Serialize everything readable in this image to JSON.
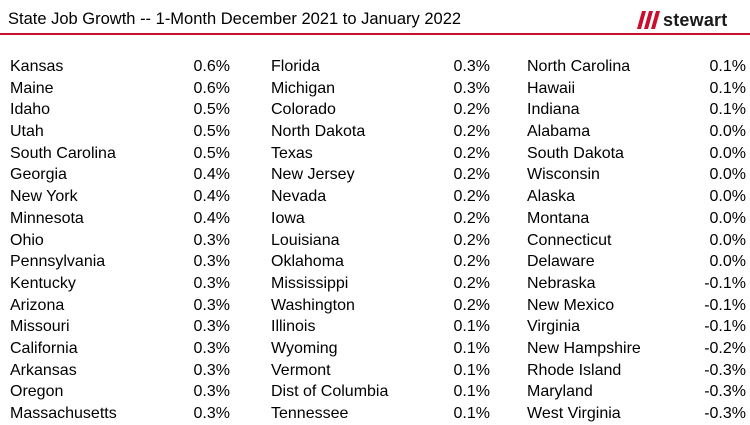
{
  "header": {
    "title": "State Job Growth -- 1-Month December 2021 to January 2022",
    "logo_text": "stewart",
    "accent_color": "#c8102e"
  },
  "chart_data": {
    "type": "table",
    "title": "State Job Growth -- 1-Month December 2021 to January 2022",
    "columns": [
      {
        "rows": [
          {
            "state": "Kansas",
            "value": "0.6%"
          },
          {
            "state": "Maine",
            "value": "0.6%"
          },
          {
            "state": "Idaho",
            "value": "0.5%"
          },
          {
            "state": "Utah",
            "value": "0.5%"
          },
          {
            "state": "South Carolina",
            "value": "0.5%"
          },
          {
            "state": "Georgia",
            "value": "0.4%"
          },
          {
            "state": "New York",
            "value": "0.4%"
          },
          {
            "state": "Minnesota",
            "value": "0.4%"
          },
          {
            "state": "Ohio",
            "value": "0.3%"
          },
          {
            "state": "Pennsylvania",
            "value": "0.3%"
          },
          {
            "state": "Kentucky",
            "value": "0.3%"
          },
          {
            "state": "Arizona",
            "value": "0.3%"
          },
          {
            "state": "Missouri",
            "value": "0.3%"
          },
          {
            "state": "California",
            "value": "0.3%"
          },
          {
            "state": "Arkansas",
            "value": "0.3%"
          },
          {
            "state": "Oregon",
            "value": "0.3%"
          },
          {
            "state": "Massachusetts",
            "value": "0.3%"
          }
        ]
      },
      {
        "rows": [
          {
            "state": "Florida",
            "value": "0.3%"
          },
          {
            "state": "Michigan",
            "value": "0.3%"
          },
          {
            "state": "Colorado",
            "value": "0.2%"
          },
          {
            "state": "North Dakota",
            "value": "0.2%"
          },
          {
            "state": "Texas",
            "value": "0.2%"
          },
          {
            "state": "New Jersey",
            "value": "0.2%"
          },
          {
            "state": "Nevada",
            "value": "0.2%"
          },
          {
            "state": "Iowa",
            "value": "0.2%"
          },
          {
            "state": "Louisiana",
            "value": "0.2%"
          },
          {
            "state": "Oklahoma",
            "value": "0.2%"
          },
          {
            "state": "Mississippi",
            "value": "0.2%"
          },
          {
            "state": "Washington",
            "value": "0.2%"
          },
          {
            "state": "Illinois",
            "value": "0.1%"
          },
          {
            "state": "Wyoming",
            "value": "0.1%"
          },
          {
            "state": "Vermont",
            "value": "0.1%"
          },
          {
            "state": "Dist of Columbia",
            "value": "0.1%"
          },
          {
            "state": "Tennessee",
            "value": "0.1%"
          }
        ]
      },
      {
        "rows": [
          {
            "state": "North Carolina",
            "value": "0.1%"
          },
          {
            "state": "Hawaii",
            "value": "0.1%"
          },
          {
            "state": "Indiana",
            "value": "0.1%"
          },
          {
            "state": "Alabama",
            "value": "0.0%"
          },
          {
            "state": "South Dakota",
            "value": "0.0%"
          },
          {
            "state": "Wisconsin",
            "value": "0.0%"
          },
          {
            "state": "Alaska",
            "value": "0.0%"
          },
          {
            "state": "Montana",
            "value": "0.0%"
          },
          {
            "state": "Connecticut",
            "value": "0.0%"
          },
          {
            "state": "Delaware",
            "value": "0.0%"
          },
          {
            "state": "Nebraska",
            "value": "-0.1%"
          },
          {
            "state": "New Mexico",
            "value": "-0.1%"
          },
          {
            "state": "Virginia",
            "value": "-0.1%"
          },
          {
            "state": "New Hampshire",
            "value": "-0.2%"
          },
          {
            "state": "Rhode Island",
            "value": "-0.3%"
          },
          {
            "state": "Maryland",
            "value": "-0.3%"
          },
          {
            "state": "West Virginia",
            "value": "-0.3%"
          }
        ]
      }
    ]
  }
}
